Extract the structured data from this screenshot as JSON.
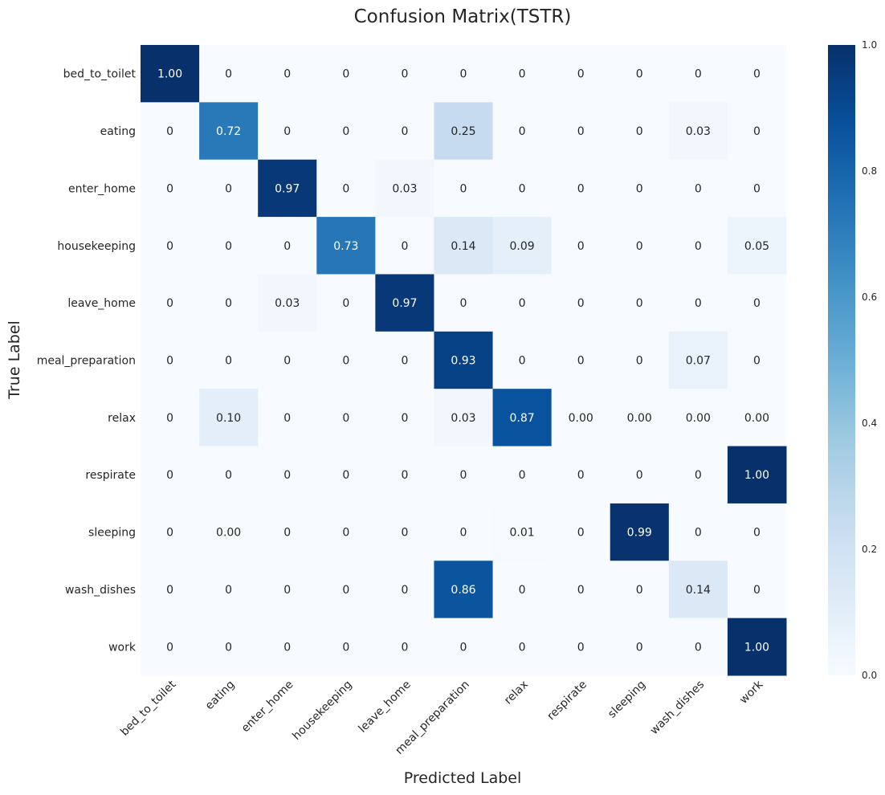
{
  "chart_data": {
    "type": "heatmap",
    "title": "Confusion Matrix(TSTR)",
    "xlabel": "Predicted Label",
    "ylabel": "True Label",
    "x_categories": [
      "bed_to_toilet",
      "eating",
      "enter_home",
      "housekeeping",
      "leave_home",
      "meal_preparation",
      "relax",
      "respirate",
      "sleeping",
      "wash_dishes",
      "work"
    ],
    "y_categories": [
      "bed_to_toilet",
      "eating",
      "enter_home",
      "housekeeping",
      "leave_home",
      "meal_preparation",
      "relax",
      "respirate",
      "sleeping",
      "wash_dishes",
      "work"
    ],
    "values": [
      [
        1.0,
        0,
        0,
        0,
        0,
        0,
        0,
        0,
        0,
        0,
        0
      ],
      [
        0,
        0.72,
        0,
        0,
        0,
        0.25,
        0,
        0,
        0,
        0.03,
        0
      ],
      [
        0,
        0,
        0.97,
        0,
        0.03,
        0,
        0,
        0,
        0,
        0,
        0
      ],
      [
        0,
        0,
        0,
        0.73,
        0,
        0.14,
        0.09,
        0,
        0,
        0,
        0.05
      ],
      [
        0,
        0,
        0.03,
        0,
        0.97,
        0,
        0,
        0,
        0,
        0,
        0
      ],
      [
        0,
        0,
        0,
        0,
        0,
        0.93,
        0,
        0,
        0,
        0.07,
        0
      ],
      [
        0,
        0.1,
        0,
        0,
        0,
        0.03,
        0.87,
        0,
        0,
        0,
        0
      ],
      [
        0,
        0,
        0,
        0,
        0,
        0,
        0,
        0,
        0,
        0,
        1.0
      ],
      [
        0,
        0,
        0,
        0,
        0,
        0,
        0.01,
        0,
        0.99,
        0,
        0
      ],
      [
        0,
        0,
        0,
        0,
        0,
        0.86,
        0,
        0,
        0,
        0.14,
        0
      ],
      [
        0,
        0,
        0,
        0,
        0,
        0,
        0,
        0,
        0,
        0,
        1.0
      ]
    ],
    "cell_labels": [
      [
        "1.00",
        "0",
        "0",
        "0",
        "0",
        "0",
        "0",
        "0",
        "0",
        "0",
        "0"
      ],
      [
        "0",
        "0.72",
        "0",
        "0",
        "0",
        "0.25",
        "0",
        "0",
        "0",
        "0.03",
        "0"
      ],
      [
        "0",
        "0",
        "0.97",
        "0",
        "0.03",
        "0",
        "0",
        "0",
        "0",
        "0",
        "0"
      ],
      [
        "0",
        "0",
        "0",
        "0.73",
        "0",
        "0.14",
        "0.09",
        "0",
        "0",
        "0",
        "0.05"
      ],
      [
        "0",
        "0",
        "0.03",
        "0",
        "0.97",
        "0",
        "0",
        "0",
        "0",
        "0",
        "0"
      ],
      [
        "0",
        "0",
        "0",
        "0",
        "0",
        "0.93",
        "0",
        "0",
        "0",
        "0.07",
        "0"
      ],
      [
        "0",
        "0.10",
        "0",
        "0",
        "0",
        "0.03",
        "0.87",
        "0.00",
        "0.00",
        "0.00",
        "0.00"
      ],
      [
        "0",
        "0",
        "0",
        "0",
        "0",
        "0",
        "0",
        "0",
        "0",
        "0",
        "1.00"
      ],
      [
        "0",
        "0.00",
        "0",
        "0",
        "0",
        "0",
        "0.01",
        "0",
        "0.99",
        "0",
        "0"
      ],
      [
        "0",
        "0",
        "0",
        "0",
        "0",
        "0.86",
        "0",
        "0",
        "0",
        "0.14",
        "0"
      ],
      [
        "0",
        "0",
        "0",
        "0",
        "0",
        "0",
        "0",
        "0",
        "0",
        "0",
        "1.00"
      ]
    ],
    "colormap": "Blues",
    "colorbar": {
      "range": [
        0.0,
        1.0
      ],
      "ticks": [
        0.0,
        0.2,
        0.4,
        0.6,
        0.8,
        1.0
      ],
      "tick_labels": [
        "0.0",
        "0.2",
        "0.4",
        "0.6",
        "0.8",
        "1.0"
      ]
    },
    "x_tick_rotation_deg": 45,
    "grid": false
  }
}
